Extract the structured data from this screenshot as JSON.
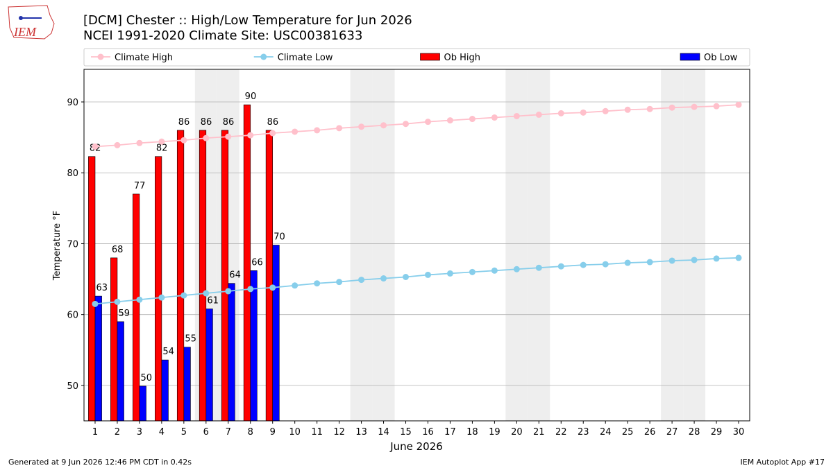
{
  "chart_data": {
    "type": "bar",
    "logo_text": "IEM",
    "title": "[DCM] Chester :: High/Low Temperature for Jun 2026",
    "subtitle": "NCEI 1991-2020 Climate Site: USC00381633",
    "y_label": "Temperature °F",
    "x_label": "June 2026",
    "footer_left": "Generated at 9 Jun 2026 12:46 PM CDT in 0.42s",
    "footer_right": "IEM Autoplot App #17",
    "x": [
      1,
      2,
      3,
      4,
      5,
      6,
      7,
      8,
      9,
      10,
      11,
      12,
      13,
      14,
      15,
      16,
      17,
      18,
      19,
      20,
      21,
      22,
      23,
      24,
      25,
      26,
      27,
      28,
      29,
      30
    ],
    "xlim": [
      0.5,
      30.5
    ],
    "xticks": [
      1,
      2,
      3,
      4,
      5,
      6,
      7,
      8,
      9,
      10,
      11,
      12,
      13,
      14,
      15,
      16,
      17,
      18,
      19,
      20,
      21,
      22,
      23,
      24,
      25,
      26,
      27,
      28,
      29,
      30
    ],
    "ylim": [
      45,
      94.6
    ],
    "yticks": [
      50,
      60,
      70,
      80,
      90
    ],
    "grid": true,
    "shaded_days": [
      6,
      7,
      13,
      14,
      20,
      21,
      27,
      28
    ],
    "series": [
      {
        "name": "Climate High",
        "kind": "line",
        "color": "#ffc0cb",
        "values": [
          83.7,
          83.9,
          84.2,
          84.4,
          84.6,
          84.9,
          85.1,
          85.3,
          85.6,
          85.8,
          86.0,
          86.3,
          86.5,
          86.7,
          86.9,
          87.2,
          87.4,
          87.6,
          87.8,
          88.0,
          88.2,
          88.4,
          88.5,
          88.7,
          88.9,
          89.0,
          89.2,
          89.3,
          89.4,
          89.6
        ]
      },
      {
        "name": "Climate Low",
        "kind": "line",
        "color": "#87ceeb",
        "values": [
          61.5,
          61.8,
          62.1,
          62.4,
          62.7,
          63.0,
          63.3,
          63.6,
          63.8,
          64.1,
          64.4,
          64.6,
          64.9,
          65.1,
          65.3,
          65.6,
          65.8,
          66.0,
          66.2,
          66.4,
          66.6,
          66.8,
          67.0,
          67.1,
          67.3,
          67.4,
          67.6,
          67.7,
          67.9,
          68.0
        ]
      },
      {
        "name": "Ob High",
        "kind": "bar",
        "color": "#ff0000",
        "values": [
          82.3,
          68.0,
          77.0,
          82.3,
          86.0,
          86.0,
          86.0,
          89.6,
          86.0,
          null,
          null,
          null,
          null,
          null,
          null,
          null,
          null,
          null,
          null,
          null,
          null,
          null,
          null,
          null,
          null,
          null,
          null,
          null,
          null,
          null
        ],
        "value_labels": [
          "82",
          "68",
          "77",
          "82",
          "86",
          "86",
          "86",
          "90",
          "86",
          null,
          null,
          null,
          null,
          null,
          null,
          null,
          null,
          null,
          null,
          null,
          null,
          null,
          null,
          null,
          null,
          null,
          null,
          null,
          null,
          null
        ]
      },
      {
        "name": "Ob Low",
        "kind": "bar",
        "color": "#0000ff",
        "values": [
          62.6,
          59.0,
          49.9,
          53.6,
          55.4,
          60.8,
          64.4,
          66.2,
          69.8,
          null,
          null,
          null,
          null,
          null,
          null,
          null,
          null,
          null,
          null,
          null,
          null,
          null,
          null,
          null,
          null,
          null,
          null,
          null,
          null,
          null
        ],
        "value_labels": [
          "63",
          "59",
          "50",
          "54",
          "55",
          "61",
          "64",
          "66",
          "70",
          null,
          null,
          null,
          null,
          null,
          null,
          null,
          null,
          null,
          null,
          null,
          null,
          null,
          null,
          null,
          null,
          null,
          null,
          null,
          null,
          null
        ]
      }
    ]
  }
}
